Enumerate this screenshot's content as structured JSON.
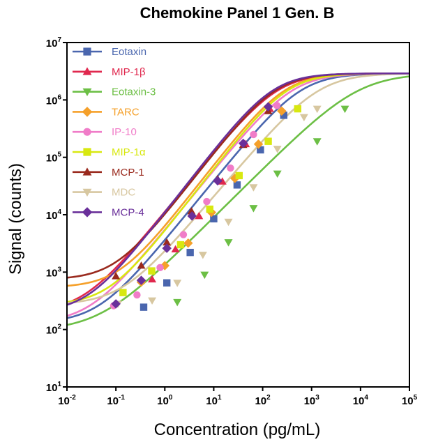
{
  "chart_data": {
    "type": "line",
    "title": "Chemokine Panel 1 Gen. B",
    "xlabel": "Concentration (pg/mL)",
    "ylabel": "Signal (counts)",
    "xscale": "log",
    "yscale": "log",
    "xlim": [
      0.01,
      100000
    ],
    "ylim": [
      10,
      10000000
    ],
    "x_tick_labels": [
      {
        "base": "10",
        "exp": "-2"
      },
      {
        "base": "10",
        "exp": "-1"
      },
      {
        "base": "10",
        "exp": "0"
      },
      {
        "base": "10",
        "exp": "1"
      },
      {
        "base": "10",
        "exp": "2"
      },
      {
        "base": "10",
        "exp": "3"
      },
      {
        "base": "10",
        "exp": "4"
      },
      {
        "base": "10",
        "exp": "5"
      }
    ],
    "y_tick_labels": [
      {
        "base": "10",
        "exp": "1"
      },
      {
        "base": "10",
        "exp": "2"
      },
      {
        "base": "10",
        "exp": "3"
      },
      {
        "base": "10",
        "exp": "4"
      },
      {
        "base": "10",
        "exp": "5"
      },
      {
        "base": "10",
        "exp": "6"
      },
      {
        "base": "10",
        "exp": "7"
      }
    ],
    "grid": false,
    "legend_position": "top-left",
    "series": [
      {
        "name": "Eotaxin",
        "color": "#4a66ae",
        "marker": "square",
        "curve": {
          "bottom": 130,
          "top": 2900000,
          "ec50": 600,
          "hill": 1.05
        },
        "points": [
          [
            0.37,
            245
          ],
          [
            1.1,
            650
          ],
          [
            3.3,
            2200
          ],
          [
            10,
            8500
          ],
          [
            30,
            33000
          ],
          [
            90,
            135000
          ],
          [
            270,
            540000
          ]
        ]
      },
      {
        "name": "MIP-1β",
        "color": "#e0284e",
        "marker": "triangle-up",
        "curve": {
          "bottom": 200,
          "top": 2900000,
          "ec50": 200,
          "hill": 1.05
        },
        "points": [
          [
            0.55,
            750
          ],
          [
            1.65,
            2500
          ],
          [
            5,
            9500
          ],
          [
            15,
            38000
          ],
          [
            45,
            170000
          ],
          [
            140,
            700000
          ]
        ]
      },
      {
        "name": "Eotaxin-3",
        "color": "#6cbf45",
        "marker": "triangle-down",
        "curve": {
          "bottom": 95,
          "top": 2900000,
          "ec50": 9000,
          "hill": 0.85
        },
        "points": [
          [
            1.8,
            300
          ],
          [
            6.5,
            900
          ],
          [
            20,
            3300
          ],
          [
            65,
            13000
          ],
          [
            200,
            52000
          ],
          [
            1300,
            190000
          ],
          [
            4800,
            700000
          ]
        ]
      },
      {
        "name": "TARC",
        "color": "#f5a02a",
        "marker": "diamond",
        "curve": {
          "bottom": 540,
          "top": 2900000,
          "ec50": 280,
          "hill": 1.1
        },
        "points": [
          [
            0.33,
            670
          ],
          [
            1,
            1300
          ],
          [
            3,
            3200
          ],
          [
            9,
            11000
          ],
          [
            27,
            43000
          ],
          [
            82,
            170000
          ],
          [
            245,
            640000
          ]
        ]
      },
      {
        "name": "IP-10",
        "color": "#f07cc8",
        "marker": "circle",
        "curve": {
          "bottom": 130,
          "top": 2900000,
          "ec50": 400,
          "hill": 1.05
        },
        "points": [
          [
            0.09,
            260
          ],
          [
            0.27,
            400
          ],
          [
            0.8,
            1200
          ],
          [
            2.4,
            4500
          ],
          [
            7.2,
            17000
          ],
          [
            22,
            65000
          ],
          [
            65,
            250000
          ],
          [
            195,
            800000
          ]
        ]
      },
      {
        "name": "MIP-1α",
        "color": "#d8e810",
        "marker": "square",
        "curve": {
          "bottom": 270,
          "top": 2900000,
          "ec50": 320,
          "hill": 1.1
        },
        "points": [
          [
            0.14,
            440
          ],
          [
            0.54,
            1050
          ],
          [
            2.1,
            3000
          ],
          [
            8.3,
            12500
          ],
          [
            33,
            48000
          ],
          [
            130,
            190000
          ],
          [
            520,
            700000
          ]
        ]
      },
      {
        "name": "MCP-1",
        "color": "#9a2a1e",
        "marker": "triangle-up",
        "curve": {
          "bottom": 740,
          "top": 2900000,
          "ec50": 180,
          "hill": 1.1
        },
        "points": [
          [
            0.1,
            850
          ],
          [
            0.33,
            1300
          ],
          [
            1.1,
            3300
          ],
          [
            3.5,
            11500
          ],
          [
            12,
            42000
          ],
          [
            40,
            165000
          ],
          [
            130,
            640000
          ]
        ]
      },
      {
        "name": "MDC",
        "color": "#d7c7a0",
        "marker": "triangle-down",
        "curve": {
          "bottom": 270,
          "top": 2900000,
          "ec50": 1400,
          "hill": 1.0
        },
        "points": [
          [
            0.11,
            280
          ],
          [
            0.55,
            320
          ],
          [
            1.8,
            650
          ],
          [
            6,
            2000
          ],
          [
            20,
            7500
          ],
          [
            65,
            30000
          ],
          [
            200,
            140000
          ],
          [
            700,
            500000
          ],
          [
            1300,
            700000
          ]
        ]
      },
      {
        "name": "MCP-4",
        "color": "#6a309a",
        "marker": "diamond",
        "curve": {
          "bottom": 200,
          "top": 2900000,
          "ec50": 160,
          "hill": 1.1
        },
        "points": [
          [
            0.1,
            280
          ],
          [
            0.33,
            720
          ],
          [
            1.1,
            2600
          ],
          [
            3.6,
            9500
          ],
          [
            12,
            39000
          ],
          [
            40,
            175000
          ],
          [
            130,
            760000
          ]
        ]
      }
    ]
  }
}
